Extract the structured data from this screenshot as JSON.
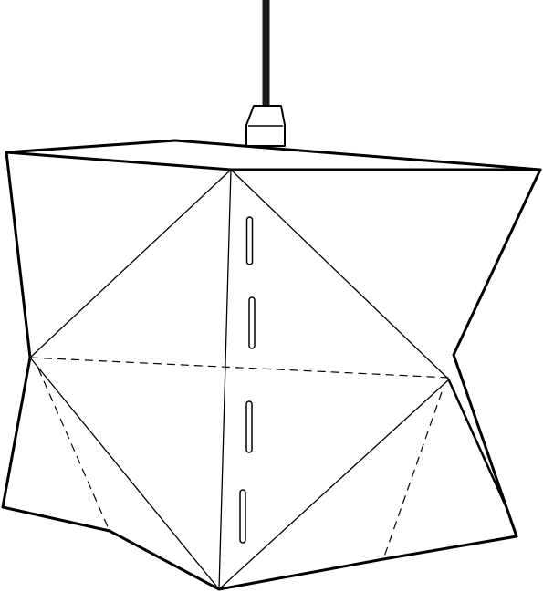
{
  "drawing": {
    "colors": {
      "background": "#ffffff",
      "line": "#000000",
      "cord": "#1a1a1a"
    }
  }
}
